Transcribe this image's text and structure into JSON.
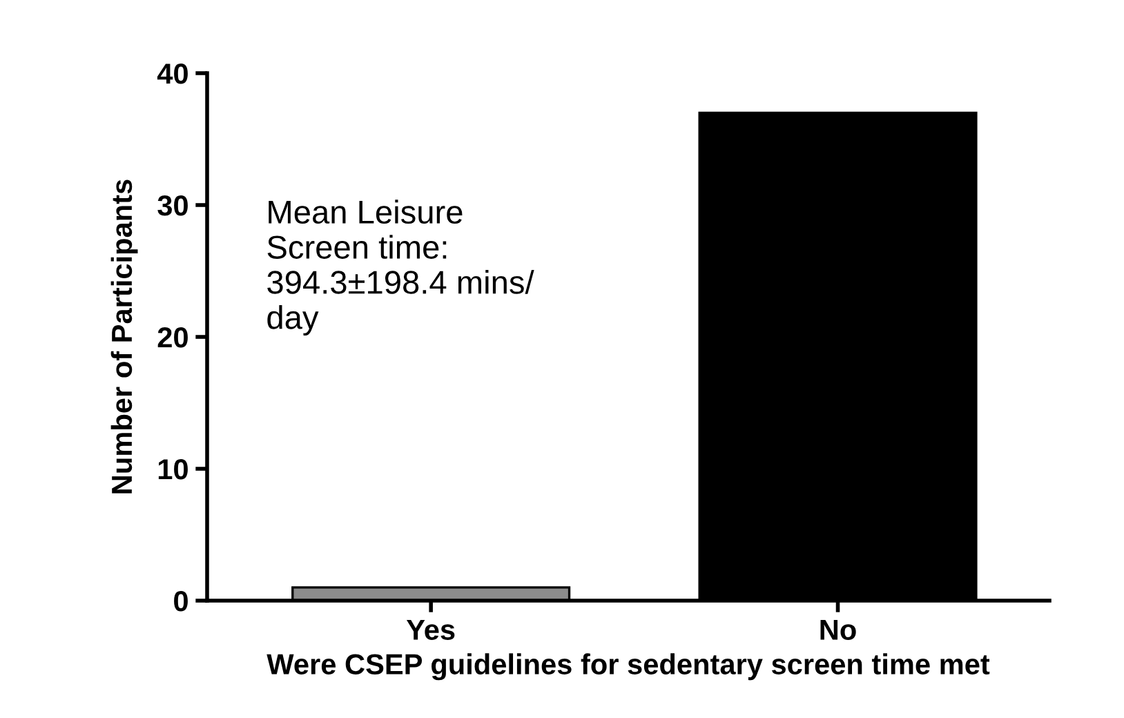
{
  "chart_data": {
    "type": "bar",
    "categories": [
      "Yes",
      "No"
    ],
    "values": [
      1,
      37
    ],
    "colors": [
      "#8c8c8c",
      "#000000"
    ],
    "xlabel": "Were CSEP guidelines for sedentary screen time met",
    "ylabel": "Number of Participants",
    "ylim": [
      0,
      40
    ],
    "yticks": [
      0,
      10,
      20,
      30,
      40
    ],
    "grid": false,
    "legend": false,
    "annotations": [
      "Mean Leisure\nScreen time:\n394.3±198.4 mins/\nday"
    ]
  }
}
